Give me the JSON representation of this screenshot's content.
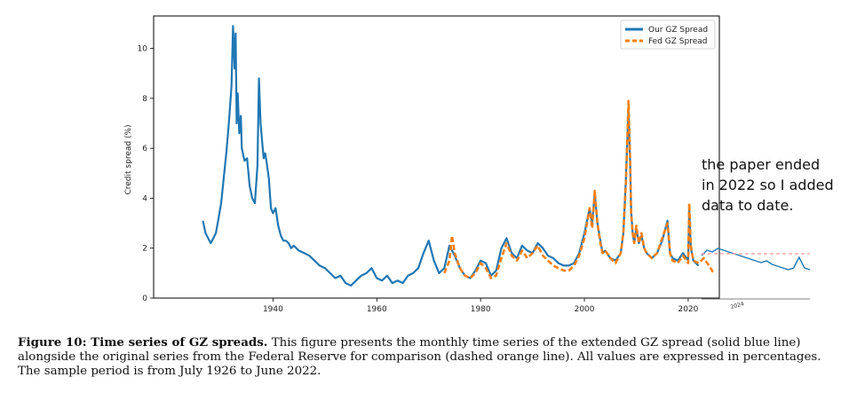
{
  "chart_data": [
    {
      "type": "line",
      "title": "",
      "xlabel": "",
      "ylabel": "Credit spread (%)",
      "xlim": [
        1917,
        2026
      ],
      "ylim": [
        0,
        11.3
      ],
      "x_ticks": [
        1940,
        1960,
        1980,
        2000,
        2020
      ],
      "y_ticks": [
        0,
        2,
        4,
        6,
        8,
        10
      ],
      "grid": false,
      "legend_position": "top-right",
      "series": [
        {
          "name": "Our GZ Spread",
          "color": "#1f77b4",
          "style": "solid",
          "x": [
            1926.5,
            1927,
            1927.5,
            1928,
            1928.5,
            1929,
            1929.5,
            1930,
            1930.5,
            1931,
            1931.5,
            1932,
            1932.3,
            1932.6,
            1932.8,
            1933,
            1933.2,
            1933.5,
            1933.8,
            1934,
            1934.5,
            1935,
            1935.5,
            1936,
            1936.5,
            1937,
            1937.3,
            1937.6,
            1937.9,
            1938.2,
            1938.5,
            1938.8,
            1939.2,
            1939.6,
            1940,
            1940.5,
            1941,
            1941.5,
            1942,
            1942.5,
            1943,
            1943.5,
            1944,
            1945,
            1946,
            1947,
            1948,
            1949,
            1950,
            1951,
            1952,
            1953,
            1954,
            1955,
            1956,
            1957,
            1958,
            1959,
            1960,
            1961,
            1962,
            1963,
            1964,
            1965,
            1966,
            1967,
            1968,
            1969,
            1970,
            1971,
            1972,
            1973,
            1974,
            1975,
            1976,
            1977,
            1978,
            1979,
            1980,
            1981,
            1982,
            1983,
            1984,
            1985,
            1986,
            1987,
            1988,
            1989,
            1990,
            1991,
            1992,
            1993,
            1994,
            1995,
            1996,
            1997,
            1998,
            1999,
            2000,
            2001,
            2001.5,
            2002,
            2002.5,
            2003,
            2003.5,
            2004,
            2005,
            2006,
            2007,
            2007.5,
            2008,
            2008.5,
            2008.8,
            2009,
            2009.3,
            2009.6,
            2010,
            2010.5,
            2011,
            2011.5,
            2012,
            2013,
            2014,
            2015,
            2016,
            2016.5,
            2017,
            2018,
            2019,
            2020,
            2020.2,
            2020.5,
            2021,
            2022
          ],
          "y": [
            3.1,
            2.6,
            2.4,
            2.2,
            2.4,
            2.6,
            3.2,
            3.8,
            4.8,
            5.8,
            7.0,
            8.5,
            10.9,
            9.2,
            10.6,
            7.0,
            8.2,
            6.6,
            7.3,
            6.0,
            5.5,
            5.6,
            4.5,
            4.0,
            3.8,
            5.3,
            8.8,
            7.0,
            6.3,
            5.6,
            5.8,
            5.4,
            4.8,
            3.6,
            3.4,
            3.6,
            2.9,
            2.5,
            2.3,
            2.3,
            2.2,
            2.0,
            2.1,
            1.9,
            1.8,
            1.7,
            1.5,
            1.3,
            1.2,
            1.0,
            0.8,
            0.9,
            0.6,
            0.5,
            0.7,
            0.9,
            1.0,
            1.2,
            0.8,
            0.7,
            0.9,
            0.6,
            0.7,
            0.6,
            0.9,
            1.0,
            1.2,
            1.8,
            2.3,
            1.5,
            1.0,
            1.2,
            2.1,
            1.7,
            1.2,
            0.9,
            0.8,
            1.1,
            1.5,
            1.4,
            0.9,
            1.1,
            2.0,
            2.4,
            1.8,
            1.6,
            2.1,
            1.9,
            1.8,
            2.2,
            2.0,
            1.7,
            1.6,
            1.4,
            1.3,
            1.3,
            1.4,
            1.8,
            2.6,
            3.6,
            3.0,
            4.2,
            3.0,
            2.4,
            1.8,
            1.9,
            1.6,
            1.5,
            1.8,
            2.6,
            4.8,
            7.6,
            5.5,
            3.5,
            2.6,
            2.2,
            2.8,
            2.2,
            2.5,
            2.0,
            1.8,
            1.6,
            1.8,
            2.3,
            3.1,
            1.8,
            1.6,
            1.5,
            1.8,
            1.5,
            3.6,
            2.0,
            1.5,
            1.3
          ]
        },
        {
          "name": "Fed GZ Spread",
          "color": "#ff7f0e",
          "style": "dashed",
          "x": [
            1973,
            1974,
            1974.5,
            1975,
            1976,
            1977,
            1978,
            1979,
            1980,
            1981,
            1982,
            1983,
            1984,
            1985,
            1986,
            1987,
            1988,
            1989,
            1990,
            1991,
            1992,
            1993,
            1994,
            1995,
            1996,
            1997,
            1998,
            1999,
            2000,
            2001,
            2001.5,
            2002,
            2002.5,
            2003,
            2003.5,
            2004,
            2005,
            2006,
            2007,
            2007.5,
            2008,
            2008.5,
            2008.8,
            2009,
            2009.3,
            2009.6,
            2010,
            2010.5,
            2011,
            2011.5,
            2012,
            2013,
            2014,
            2015,
            2016,
            2016.5,
            2017,
            2018,
            2019,
            2020,
            2020.2,
            2020.5,
            2021,
            2022,
            2023,
            2024,
            2024.9
          ],
          "y": [
            1.0,
            1.5,
            2.5,
            1.8,
            1.2,
            0.9,
            0.8,
            1.0,
            1.4,
            1.2,
            0.8,
            0.9,
            1.6,
            2.2,
            1.7,
            1.5,
            1.9,
            1.6,
            1.8,
            2.1,
            1.7,
            1.5,
            1.3,
            1.2,
            1.1,
            1.1,
            1.3,
            1.7,
            2.4,
            3.6,
            2.8,
            4.3,
            3.0,
            2.3,
            1.8,
            1.9,
            1.6,
            1.4,
            1.8,
            2.6,
            4.6,
            7.9,
            5.6,
            3.4,
            2.6,
            2.2,
            2.9,
            2.2,
            2.6,
            2.0,
            1.8,
            1.6,
            1.8,
            2.4,
            3.0,
            1.8,
            1.5,
            1.4,
            1.7,
            1.4,
            3.8,
            2.1,
            1.5,
            1.4,
            1.6,
            1.3,
            1.0
          ]
        }
      ]
    },
    {
      "type": "line",
      "title": "",
      "xlabel": "",
      "ylabel": "",
      "x_ticks": [
        "2024"
      ],
      "series": [
        {
          "name": "",
          "color": "#1f77b4",
          "style": "solid",
          "x": [
            2023.0,
            2023.15,
            2023.3,
            2023.45,
            2023.6,
            2023.75,
            2023.9,
            2024.05,
            2024.2,
            2024.35,
            2024.5,
            2024.65,
            2024.8,
            2024.95,
            2025.1,
            2025.25,
            2025.4,
            2025.55,
            2025.7,
            2025.85,
            2026.0
          ],
          "y": [
            1.4,
            1.55,
            1.5,
            1.6,
            1.55,
            1.5,
            1.45,
            1.4,
            1.35,
            1.3,
            1.25,
            1.2,
            1.25,
            1.15,
            1.1,
            1.05,
            1.0,
            1.05,
            1.35,
            1.05,
            1.0
          ]
        },
        {
          "name": "",
          "color": "#ff9999",
          "style": "dashed",
          "x": [
            2023.0,
            2026.0
          ],
          "y": [
            1.45,
            1.45
          ]
        }
      ]
    }
  ],
  "annotation": {
    "note": "the paper ended\nin 2022 so I added\ndata to date."
  },
  "caption": {
    "label": "Figure 10: Time series of GZ spreads.",
    "text": " This figure presents the monthly time series of the extended GZ spread (solid blue line) alongside the original series from the Federal Reserve for comparison (dashed orange line). All values are expressed in percentages. The sample period is from July 1926 to June 2022."
  }
}
